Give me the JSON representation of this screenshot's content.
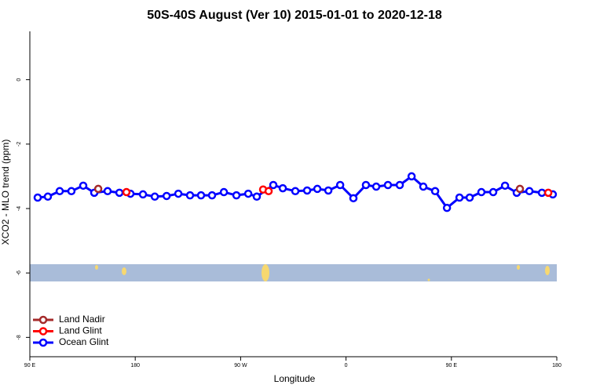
{
  "chart_data": {
    "type": "line",
    "title": "50S-40S August (Ver 10)   2015-01-01 to 2020-12-18",
    "x_label": "Longitude",
    "y_label": "XCO2 - MLO trend (ppm)",
    "xlim": [
      90,
      540
    ],
    "ylim": [
      -8.6,
      1.5
    ],
    "xticks": [
      {
        "value": 90,
        "label": "90 E"
      },
      180,
      {
        "value": 270,
        "label": "90 W"
      },
      {
        "value": 360,
        "label": "0"
      },
      {
        "value": 450,
        "label": "90 E"
      },
      {
        "value": 540,
        "label": "180"
      }
    ],
    "yticks": [
      0,
      -2,
      -4,
      -6,
      -8
    ],
    "legend": "bottomleft",
    "series": [
      {
        "name": "Land Nadir",
        "color": "#a52a2a",
        "x": [
          148.4,
          null,
          508.5
        ],
        "values": [
          -3.39,
          null,
          -3.39
        ]
      },
      {
        "name": "Land Glint",
        "color": "#ff0000",
        "x": [
          172.5,
          null,
          289.2,
          293.9,
          null,
          532.7
        ],
        "values": [
          -3.49,
          null,
          -3.41,
          -3.46,
          null,
          -3.51
        ]
      },
      {
        "name": "Ocean Glint",
        "color": "#0000ff",
        "x": [
          96.7,
          105.4,
          115.5,
          125.5,
          135.6,
          145,
          156.4,
          166.5,
          175.9,
          186.6,
          196.7,
          206.8,
          216.8,
          226.8,
          236.2,
          245.6,
          255.7,
          266.4,
          276.5,
          283.8,
          297.9,
          306,
          316.7,
          326.8,
          335.5,
          344.9,
          355,
          366.3,
          377,
          385.8,
          395.8,
          405.9,
          416,
          426,
          436.1,
          446.2,
          456.9,
          465.6,
          475.6,
          485.7,
          495.8,
          505.8,
          516.6,
          527.3,
          536.6
        ],
        "values": [
          -3.66,
          -3.63,
          -3.46,
          -3.46,
          -3.29,
          -3.51,
          -3.46,
          -3.51,
          -3.54,
          -3.56,
          -3.63,
          -3.61,
          -3.54,
          -3.59,
          -3.59,
          -3.59,
          -3.49,
          -3.59,
          -3.54,
          -3.63,
          -3.27,
          -3.37,
          -3.46,
          -3.44,
          -3.39,
          -3.44,
          -3.27,
          -3.68,
          -3.27,
          -3.32,
          -3.27,
          -3.27,
          -3.0,
          -3.32,
          -3.46,
          -3.98,
          -3.66,
          -3.66,
          -3.49,
          -3.49,
          -3.29,
          -3.51,
          -3.46,
          -3.51,
          -3.56
        ]
      }
    ]
  }
}
